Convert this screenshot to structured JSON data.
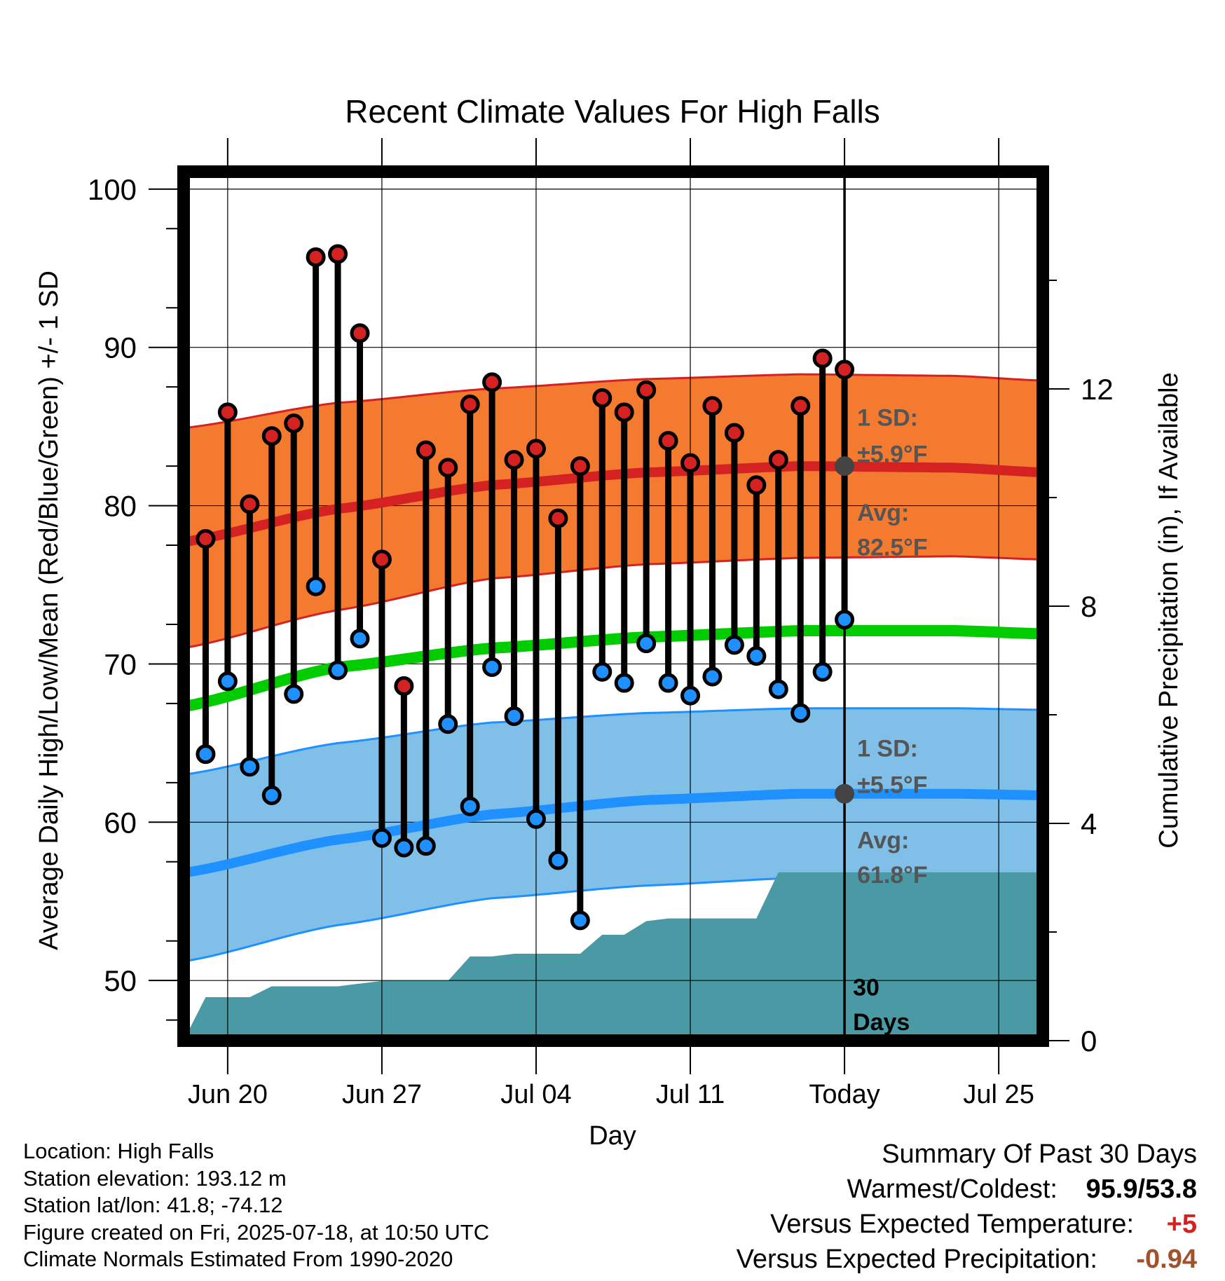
{
  "chart_data": {
    "type": "line",
    "title": "Recent Climate Values For High Falls",
    "xlabel": "Day",
    "ylabel": "Average Daily High/Low/Mean (Red/Blue/Green) +/- 1 SD",
    "y2label": "Cumulative Precipitation (in), If Available",
    "ylim": [
      46.2,
      101.1
    ],
    "y2lim": [
      0,
      16
    ],
    "y_ticks": [
      50,
      60,
      70,
      80,
      90,
      100
    ],
    "y2_ticks": [
      0,
      4,
      8,
      12
    ],
    "x_range_days": [
      "Jun 18",
      "Jul 27"
    ],
    "x_ticks": [
      {
        "day": "Jun 20",
        "label": "Jun 20"
      },
      {
        "day": "Jun 27",
        "label": "Jun 27"
      },
      {
        "day": "Jul 04",
        "label": "Jul 04"
      },
      {
        "day": "Jul 11",
        "label": "Jul 11"
      },
      {
        "day": "Jul 18",
        "label": "Today"
      },
      {
        "day": "Jul 25",
        "label": "Jul 25"
      }
    ],
    "today": "Jul 18",
    "grid": true,
    "colors": {
      "high_band": "#f47a30",
      "high_line": "#d42222",
      "high_edge": "#d42222",
      "low_band": "#80c0e8",
      "low_line": "#1e90ff",
      "low_edge": "#1e90ff",
      "mean_line": "#00cc00",
      "precip_fill": "#4a9aa5",
      "high_marker": "#d42222",
      "low_marker": "#1e90ff",
      "today_marker": "#444444",
      "annotation": "#555555"
    },
    "observations": {
      "dates": [
        "Jun 19",
        "Jun 20",
        "Jun 21",
        "Jun 22",
        "Jun 23",
        "Jun 24",
        "Jun 25",
        "Jun 26",
        "Jun 27",
        "Jun 28",
        "Jun 29",
        "Jun 30",
        "Jul 01",
        "Jul 02",
        "Jul 03",
        "Jul 04",
        "Jul 05",
        "Jul 06",
        "Jul 07",
        "Jul 08",
        "Jul 09",
        "Jul 10",
        "Jul 11",
        "Jul 12",
        "Jul 13",
        "Jul 14",
        "Jul 15",
        "Jul 16",
        "Jul 17"
      ],
      "highs": [
        77.9,
        85.9,
        80.1,
        84.4,
        85.2,
        95.7,
        95.9,
        90.9,
        76.6,
        68.6,
        83.5,
        82.4,
        86.4,
        87.8,
        82.9,
        83.6,
        79.2,
        82.5,
        86.8,
        85.9,
        87.3,
        84.1,
        82.7,
        86.3,
        84.6,
        81.3,
        82.9,
        86.3,
        89.3
      ],
      "lows": [
        64.3,
        68.9,
        63.5,
        61.7,
        68.1,
        74.9,
        69.6,
        71.6,
        59.0,
        58.4,
        58.5,
        66.2,
        61.0,
        69.8,
        66.7,
        60.2,
        57.6,
        53.8,
        69.5,
        68.8,
        71.3,
        68.8,
        68.0,
        69.2,
        71.2,
        70.5,
        68.4,
        66.9,
        69.5
      ]
    },
    "extra_last_day": {
      "date": "Jul 17",
      "high": 88.6,
      "low": 72.8
    },
    "normals": {
      "days": [
        "Jun 18",
        "Jun 25",
        "Jul 02",
        "Jul 09",
        "Jul 16",
        "Jul 23",
        "Jul 27"
      ],
      "high_avg": [
        77.7,
        79.8,
        81.3,
        82.1,
        82.5,
        82.4,
        82.1
      ],
      "high_upper": [
        84.9,
        86.5,
        87.4,
        88.0,
        88.3,
        88.2,
        87.9
      ],
      "high_lower": [
        71.0,
        73.4,
        75.4,
        76.3,
        76.7,
        76.8,
        76.6
      ],
      "mean_avg": [
        67.3,
        69.8,
        71.0,
        71.7,
        72.1,
        72.1,
        71.9
      ],
      "low_avg": [
        56.8,
        58.9,
        60.5,
        61.4,
        61.8,
        61.8,
        61.7
      ],
      "low_upper": [
        63.0,
        65.0,
        66.3,
        66.9,
        67.2,
        67.2,
        67.1
      ],
      "low_lower": [
        51.2,
        53.5,
        55.2,
        56.0,
        56.5,
        56.6,
        56.5
      ]
    },
    "precip_cumulative": {
      "days": [
        "Jun 18",
        "Jun 18.5",
        "Jun 19",
        "Jun 20",
        "Jun 21",
        "Jun 22",
        "Jun 23",
        "Jun 24",
        "Jun 25",
        "Jun 26",
        "Jun 27",
        "Jun 28",
        "Jun 29",
        "Jun 30",
        "Jul 01",
        "Jul 02",
        "Jul 03",
        "Jul 04",
        "Jul 05",
        "Jul 06",
        "Jul 07",
        "Jul 08",
        "Jul 09",
        "Jul 10",
        "Jul 11",
        "Jul 12",
        "Jul 13",
        "Jul 14",
        "Jul 15",
        "Jul 27"
      ],
      "values": [
        0.0,
        0.4,
        0.8,
        0.8,
        0.8,
        1.0,
        1.0,
        1.0,
        1.0,
        1.05,
        1.1,
        1.1,
        1.1,
        1.1,
        1.55,
        1.55,
        1.6,
        1.6,
        1.6,
        1.6,
        1.95,
        1.95,
        2.2,
        2.25,
        2.25,
        2.25,
        2.25,
        2.25,
        3.1,
        3.1
      ]
    },
    "annotations": {
      "high_sd_label": "1 SD:",
      "high_sd_value": "±5.9°F",
      "high_avg_label": "Avg:",
      "high_avg_value": "82.5°F",
      "low_sd_label": "1 SD:",
      "low_sd_value": "±5.5°F",
      "low_avg_label": "Avg:",
      "low_avg_value": "61.8°F",
      "window_label_1": "30",
      "window_label_2": "Days"
    }
  },
  "footer": {
    "location": "Location: High Falls",
    "elevation": "Station elevation: 193.12 m",
    "latlon": "Station lat/lon: 41.8; -74.12",
    "created": "Figure created on Fri, 2025-07-18, at 10:50 UTC",
    "normals": "Climate Normals Estimated From 1990-2020"
  },
  "summary": {
    "heading": "Summary Of Past 30 Days",
    "warm_cold_label": "Warmest/Coldest:",
    "warm_cold_value": "95.9/53.8",
    "temp_label": "Versus Expected Temperature:",
    "temp_value": "+5",
    "temp_color": "#d42222",
    "precip_label": "Versus Expected Precipitation:",
    "precip_value": "-0.94",
    "precip_color": "#a0522d"
  }
}
